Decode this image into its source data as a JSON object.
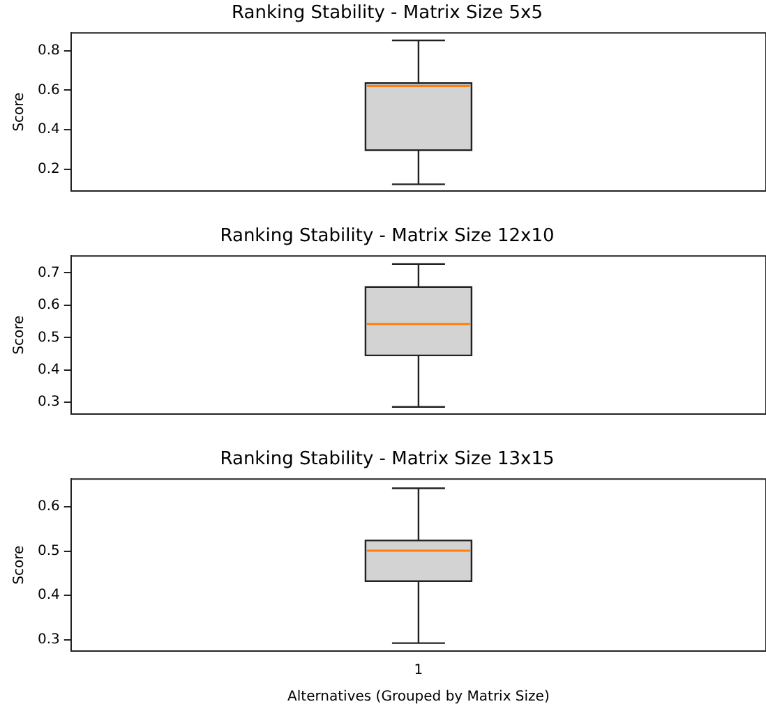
{
  "chart_data": [
    {
      "type": "box",
      "title": "Ranking Stability - Matrix Size 5x5",
      "ylabel": "Score",
      "categories": [
        null
      ],
      "grid": false,
      "ylim": [
        0.089,
        0.891
      ],
      "yticks": [
        0.2,
        0.4,
        0.6,
        0.8
      ],
      "boxes": [
        {
          "low": 0.123,
          "q1": 0.296,
          "median": 0.621,
          "q3": 0.636,
          "high": 0.853
        }
      ]
    },
    {
      "type": "box",
      "title": "Ranking Stability - Matrix Size 12x10",
      "ylabel": "Score",
      "categories": [
        null
      ],
      "grid": false,
      "ylim": [
        0.264,
        0.752
      ],
      "yticks": [
        0.3,
        0.4,
        0.5,
        0.6,
        0.7
      ],
      "boxes": [
        {
          "low": 0.286,
          "q1": 0.445,
          "median": 0.542,
          "q3": 0.656,
          "high": 0.727
        }
      ]
    },
    {
      "type": "box",
      "title": "Ranking Stability - Matrix Size 13x15",
      "xlabel": "Alternatives (Grouped by Matrix Size)",
      "ylabel": "Score",
      "categories": [
        "1"
      ],
      "grid": false,
      "ylim": [
        0.274,
        0.663
      ],
      "yticks": [
        0.3,
        0.4,
        0.5,
        0.6
      ],
      "boxes": [
        {
          "low": 0.292,
          "q1": 0.432,
          "median": 0.501,
          "q3": 0.524,
          "high": 0.642
        }
      ]
    }
  ]
}
